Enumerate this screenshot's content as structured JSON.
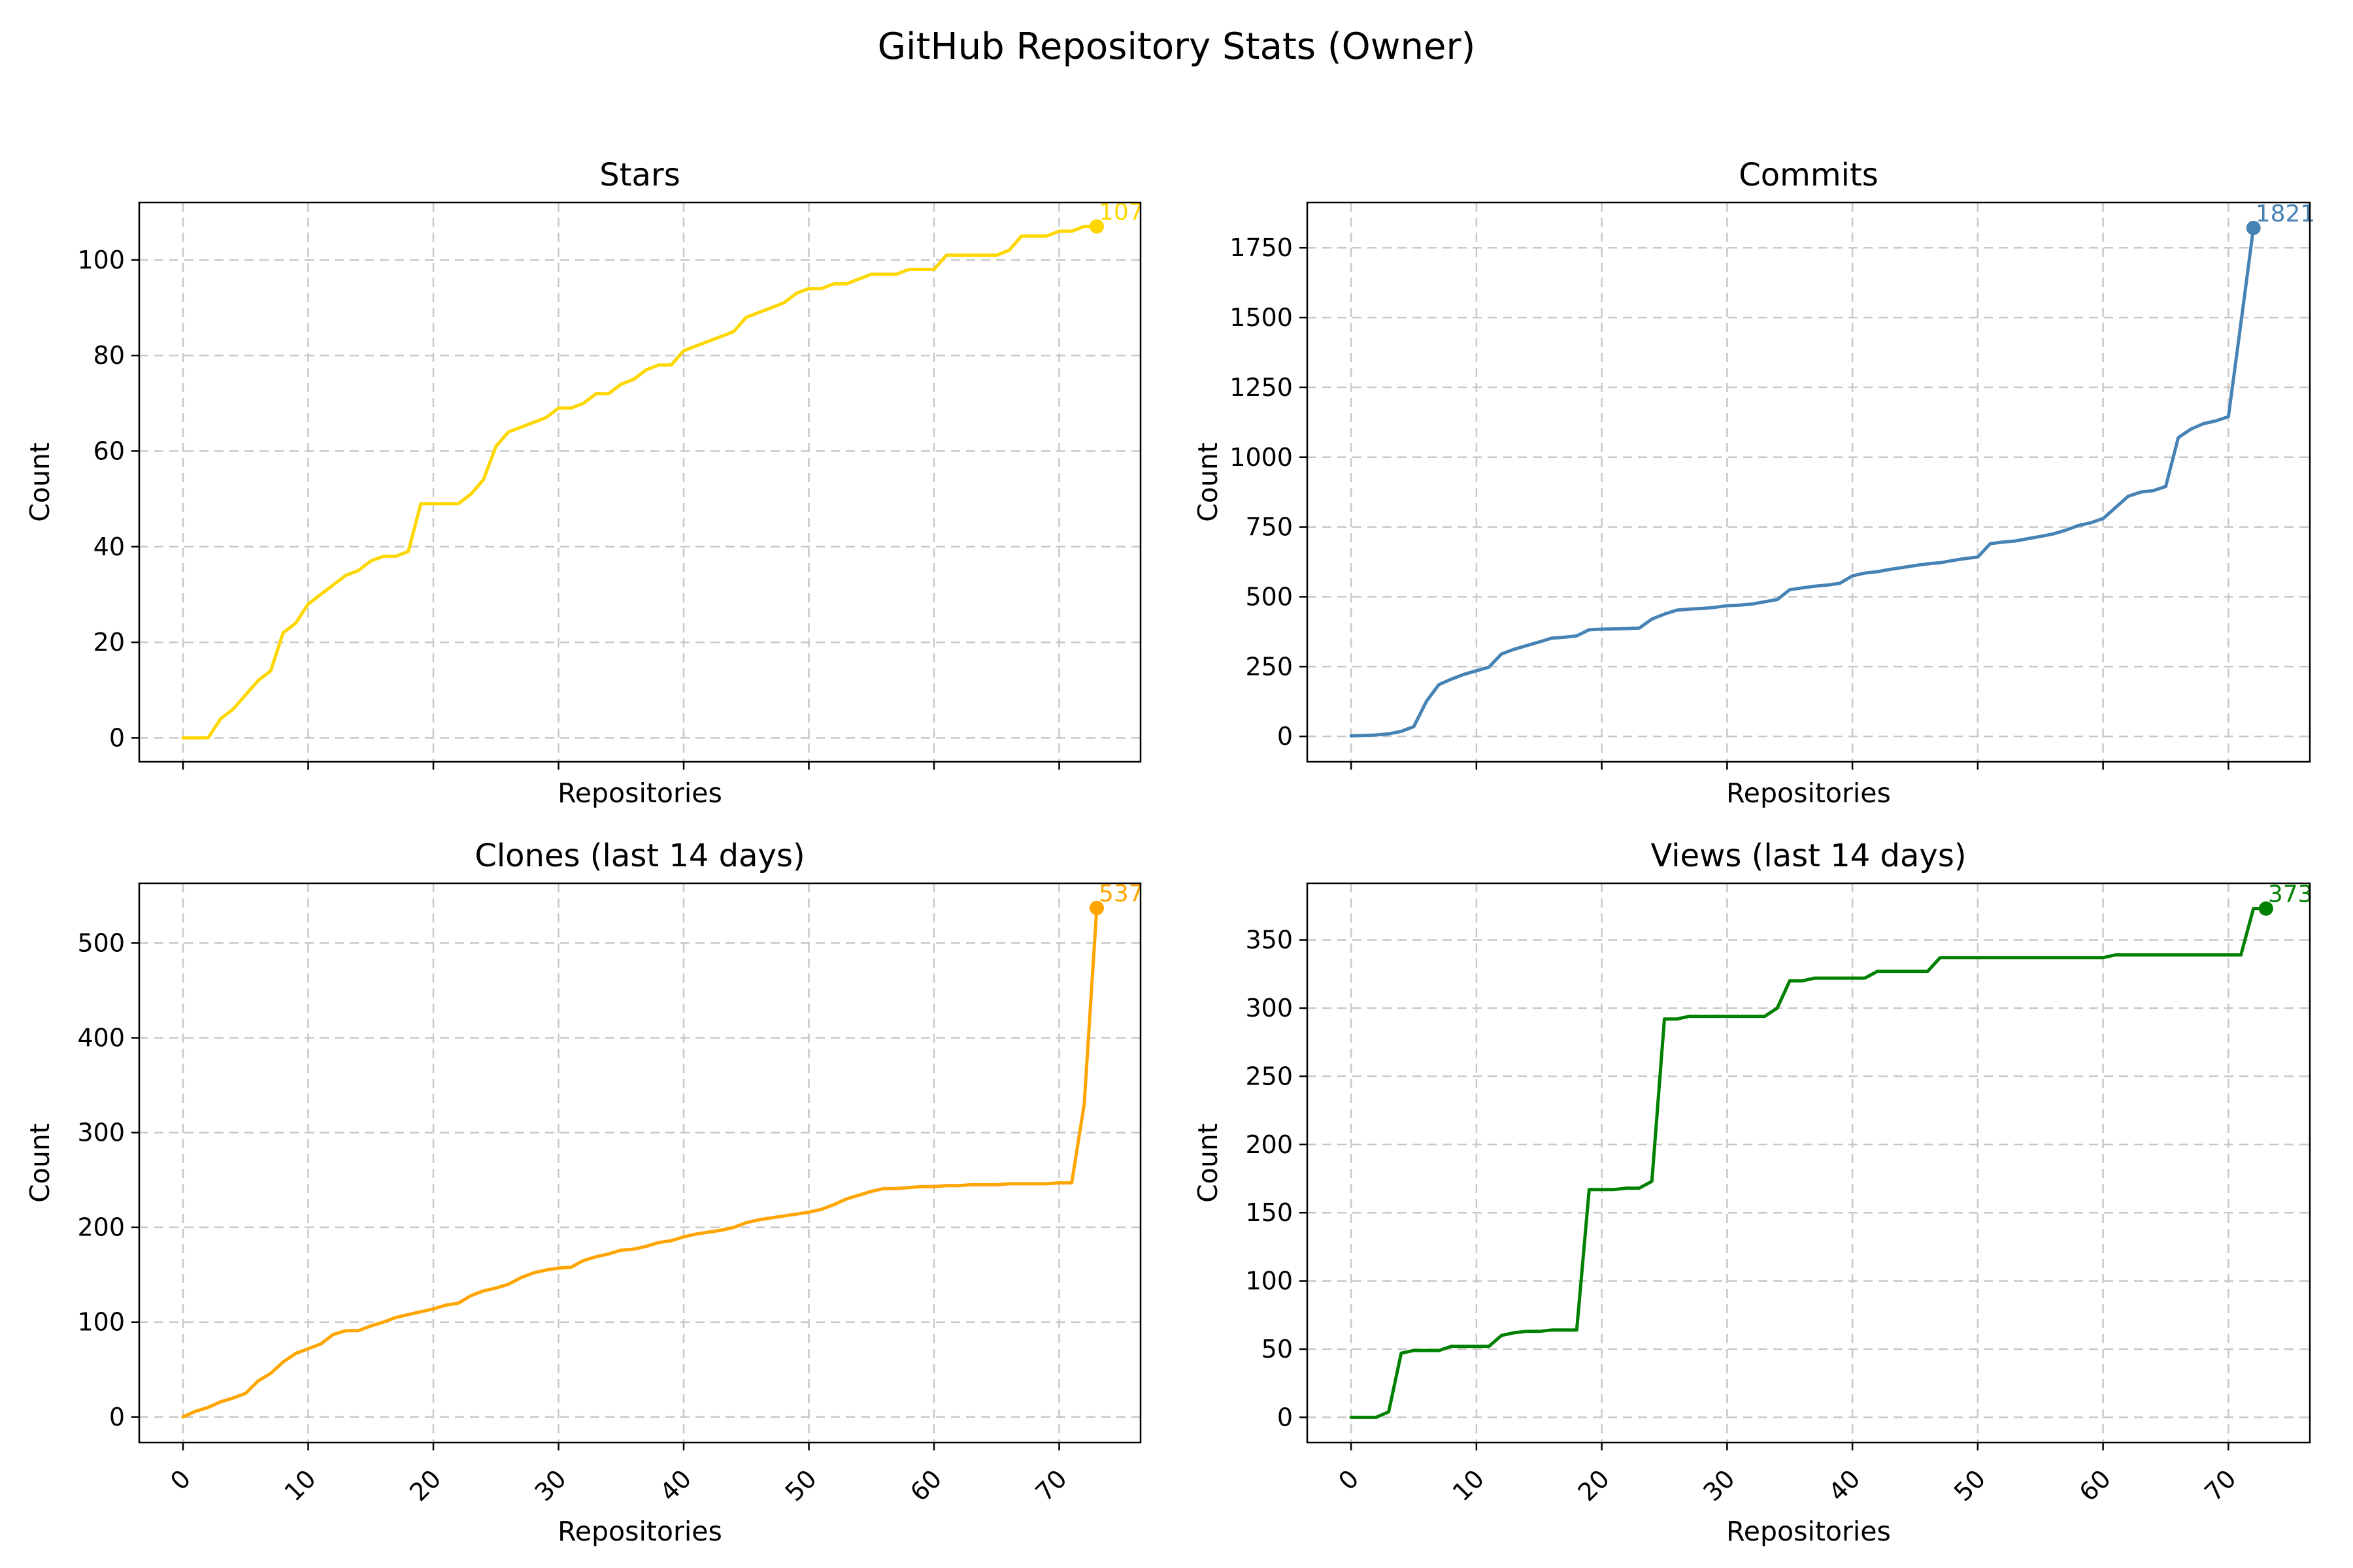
{
  "figure": {
    "title": "GitHub Repository Stats (Owner)"
  },
  "chart_data": [
    {
      "id": "stars",
      "type": "line",
      "title": "Stars",
      "xlabel": "Repositories",
      "ylabel": "Count",
      "color": "#FFD700",
      "xlim": [
        -3.5,
        76.5
      ],
      "ylim": [
        -5,
        112
      ],
      "xticks": [
        0,
        10,
        20,
        30,
        40,
        50,
        60,
        70
      ],
      "yticks": [
        0,
        20,
        40,
        60,
        80,
        100
      ],
      "xtick_labels_visible": false,
      "grid": true,
      "final_label": "107",
      "values": [
        0,
        0,
        0,
        4,
        6,
        9,
        12,
        14,
        22,
        24,
        28,
        30,
        32,
        34,
        35,
        37,
        38,
        38,
        39,
        49,
        49,
        49,
        49,
        51,
        54,
        61,
        64,
        65,
        66,
        67,
        69,
        69,
        70,
        72,
        72,
        74,
        75,
        77,
        78,
        78,
        81,
        82,
        83,
        84,
        85,
        88,
        89,
        90,
        91,
        93,
        94,
        94,
        95,
        95,
        96,
        97,
        97,
        97,
        98,
        98,
        98,
        101,
        101,
        101,
        101,
        101,
        102,
        105,
        105,
        105,
        106,
        106,
        107,
        107
      ]
    },
    {
      "id": "commits",
      "type": "line",
      "title": "Commits",
      "xlabel": "Repositories",
      "ylabel": "Count",
      "color": "#4682B4",
      "xlim": [
        -3.5,
        76.5
      ],
      "ylim": [
        -91,
        1912
      ],
      "xticks": [
        0,
        10,
        20,
        30,
        40,
        50,
        60,
        70
      ],
      "yticks": [
        0,
        250,
        500,
        750,
        1000,
        1250,
        1500,
        1750
      ],
      "xtick_labels_visible": false,
      "grid": true,
      "final_label": "1821",
      "values": [
        2,
        3,
        5,
        9,
        18,
        35,
        125,
        185,
        205,
        222,
        235,
        248,
        295,
        312,
        325,
        338,
        352,
        355,
        360,
        382,
        384,
        385,
        386,
        388,
        420,
        438,
        452,
        456,
        458,
        462,
        468,
        470,
        474,
        482,
        490,
        525,
        532,
        538,
        542,
        548,
        575,
        585,
        590,
        598,
        605,
        612,
        618,
        622,
        630,
        637,
        642,
        690,
        696,
        700,
        708,
        716,
        725,
        738,
        755,
        765,
        780,
        820,
        860,
        875,
        880,
        895,
        1070,
        1100,
        1120,
        1130,
        1145,
        1480,
        1821
      ]
    },
    {
      "id": "clones",
      "type": "line",
      "title": "Clones (last 14 days)",
      "xlabel": "Repositories",
      "ylabel": "Count",
      "color": "#FFA500",
      "xlim": [
        -3.5,
        76.5
      ],
      "ylim": [
        -27,
        563
      ],
      "xticks": [
        0,
        10,
        20,
        30,
        40,
        50,
        60,
        70
      ],
      "yticks": [
        0,
        100,
        200,
        300,
        400,
        500
      ],
      "xtick_labels_visible": true,
      "grid": true,
      "final_label": "537",
      "values": [
        0,
        6,
        10,
        16,
        20,
        25,
        38,
        46,
        58,
        67,
        72,
        77,
        87,
        91,
        91,
        96,
        100,
        105,
        108,
        111,
        114,
        118,
        120,
        128,
        133,
        136,
        140,
        147,
        152,
        155,
        157,
        158,
        165,
        169,
        172,
        176,
        177,
        180,
        184,
        186,
        190,
        193,
        195,
        197,
        200,
        205,
        208,
        210,
        212,
        214,
        216,
        219,
        224,
        230,
        234,
        238,
        241,
        241,
        242,
        243,
        243,
        244,
        244,
        245,
        245,
        245,
        246,
        246,
        246,
        246,
        247,
        247,
        330,
        537
      ]
    },
    {
      "id": "views",
      "type": "line",
      "title": "Views (last 14 days)",
      "xlabel": "Repositories",
      "ylabel": "Count",
      "color": "#008000",
      "xlim": [
        -3.5,
        76.5
      ],
      "ylim": [
        -18.5,
        391.5
      ],
      "xticks": [
        0,
        10,
        20,
        30,
        40,
        50,
        60,
        70
      ],
      "yticks": [
        0,
        50,
        100,
        150,
        200,
        250,
        300,
        350
      ],
      "xtick_labels_visible": true,
      "grid": true,
      "final_label": "373",
      "values": [
        0,
        0,
        0,
        4,
        47,
        49,
        49,
        49,
        52,
        52,
        52,
        52,
        60,
        62,
        63,
        63,
        64,
        64,
        64,
        167,
        167,
        167,
        168,
        168,
        173,
        292,
        292,
        294,
        294,
        294,
        294,
        294,
        294,
        294,
        300,
        320,
        320,
        322,
        322,
        322,
        322,
        322,
        327,
        327,
        327,
        327,
        327,
        337,
        337,
        337,
        337,
        337,
        337,
        337,
        337,
        337,
        337,
        337,
        337,
        337,
        337,
        339,
        339,
        339,
        339,
        339,
        339,
        339,
        339,
        339,
        339,
        339,
        373,
        373
      ]
    }
  ]
}
